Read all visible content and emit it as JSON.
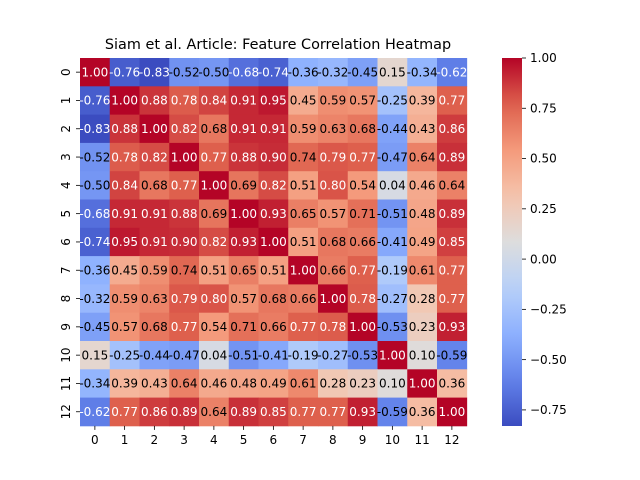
{
  "chart_data": {
    "type": "heatmap",
    "title": "Siam et al. Article: Feature Correlation Heatmap",
    "xlabel": "",
    "ylabel": "",
    "x_categories": [
      "0",
      "1",
      "2",
      "3",
      "4",
      "5",
      "6",
      "7",
      "8",
      "9",
      "10",
      "11",
      "12"
    ],
    "y_categories": [
      "0",
      "1",
      "2",
      "3",
      "4",
      "5",
      "6",
      "7",
      "8",
      "9",
      "10",
      "11",
      "12"
    ],
    "values": [
      [
        1.0,
        -0.76,
        -0.83,
        -0.52,
        -0.5,
        -0.68,
        -0.74,
        -0.36,
        -0.32,
        -0.45,
        0.15,
        -0.34,
        -0.62
      ],
      [
        -0.76,
        1.0,
        0.88,
        0.78,
        0.84,
        0.91,
        0.95,
        0.45,
        0.59,
        0.57,
        -0.25,
        0.39,
        0.77
      ],
      [
        -0.83,
        0.88,
        1.0,
        0.82,
        0.68,
        0.91,
        0.91,
        0.59,
        0.63,
        0.68,
        -0.44,
        0.43,
        0.86
      ],
      [
        -0.52,
        0.78,
        0.82,
        1.0,
        0.77,
        0.88,
        0.9,
        0.74,
        0.79,
        0.77,
        -0.47,
        0.64,
        0.89
      ],
      [
        -0.5,
        0.84,
        0.68,
        0.77,
        1.0,
        0.69,
        0.82,
        0.51,
        0.8,
        0.54,
        0.04,
        0.46,
        0.64
      ],
      [
        -0.68,
        0.91,
        0.91,
        0.88,
        0.69,
        1.0,
        0.93,
        0.65,
        0.57,
        0.71,
        -0.51,
        0.48,
        0.89
      ],
      [
        -0.74,
        0.95,
        0.91,
        0.9,
        0.82,
        0.93,
        1.0,
        0.51,
        0.68,
        0.66,
        -0.41,
        0.49,
        0.85
      ],
      [
        -0.36,
        0.45,
        0.59,
        0.74,
        0.51,
        0.65,
        0.51,
        1.0,
        0.66,
        0.77,
        -0.19,
        0.61,
        0.77
      ],
      [
        -0.32,
        0.59,
        0.63,
        0.79,
        0.8,
        0.57,
        0.68,
        0.66,
        1.0,
        0.78,
        -0.27,
        0.28,
        0.77
      ],
      [
        -0.45,
        0.57,
        0.68,
        0.77,
        0.54,
        0.71,
        0.66,
        0.77,
        0.78,
        1.0,
        -0.53,
        0.23,
        0.93
      ],
      [
        0.15,
        -0.25,
        -0.44,
        -0.47,
        0.04,
        -0.51,
        -0.41,
        -0.19,
        -0.27,
        -0.53,
        1.0,
        0.1,
        -0.59
      ],
      [
        -0.34,
        0.39,
        0.43,
        0.64,
        0.46,
        0.48,
        0.49,
        0.61,
        0.28,
        0.23,
        0.1,
        1.0,
        0.36
      ],
      [
        -0.62,
        0.77,
        0.86,
        0.89,
        0.64,
        0.89,
        0.85,
        0.77,
        0.77,
        0.93,
        -0.59,
        0.36,
        1.0
      ]
    ],
    "colormap": "coolwarm",
    "colorbar": {
      "min": -0.83,
      "max": 1.0,
      "ticks": [
        1.0,
        0.75,
        0.5,
        0.25,
        0.0,
        -0.25,
        -0.5,
        -0.75
      ],
      "tick_labels": [
        "1.00",
        "0.75",
        "0.50",
        "0.25",
        "0.00",
        "−0.25",
        "−0.50",
        "−0.75"
      ]
    },
    "annotations": true,
    "value_format": "2 decimals",
    "grid": false
  }
}
